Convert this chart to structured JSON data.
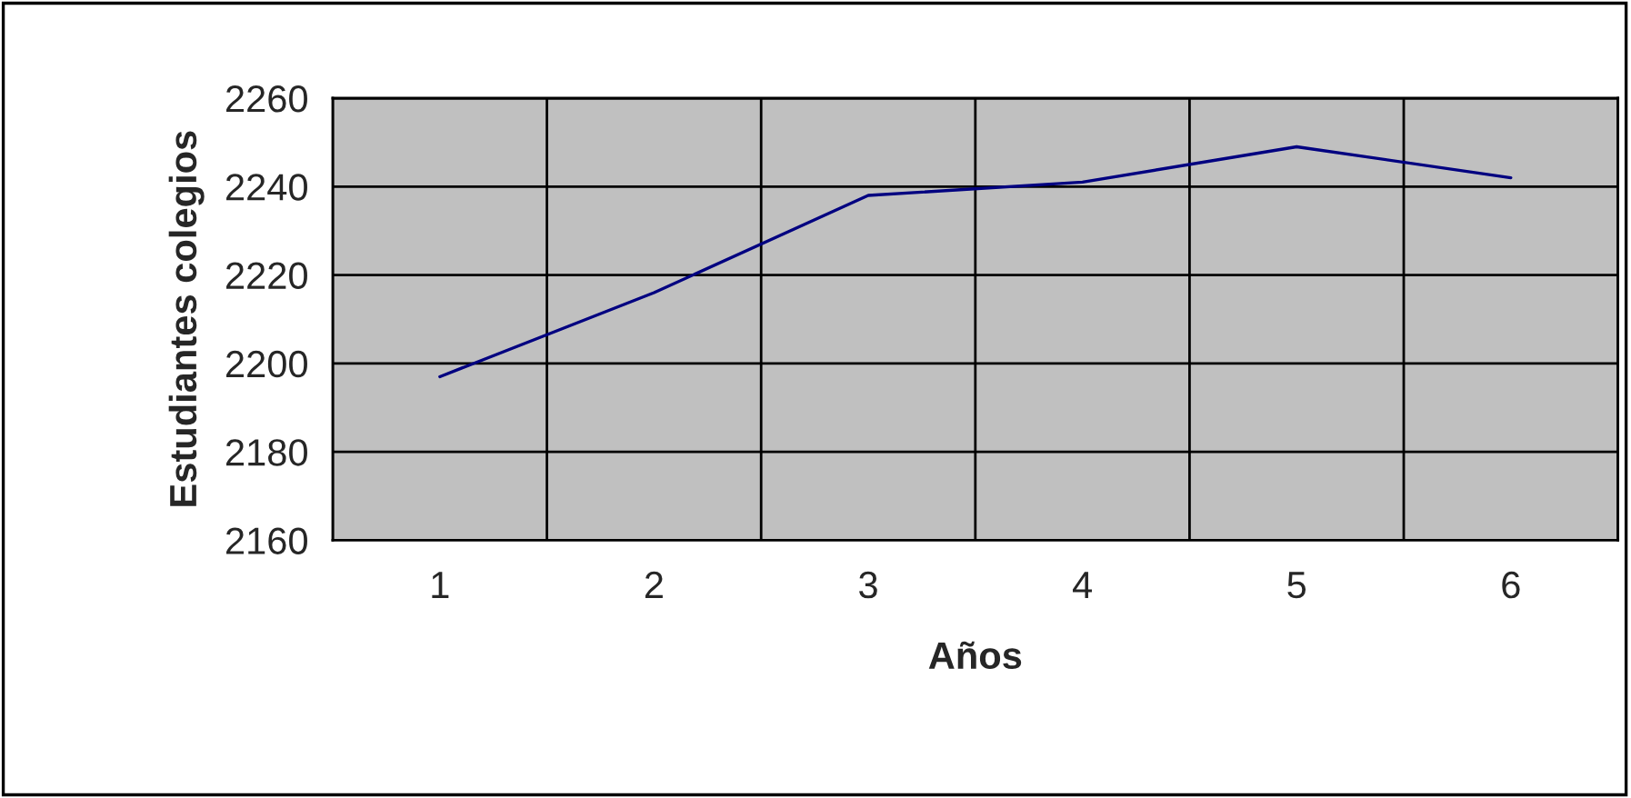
{
  "chart_data": {
    "type": "line",
    "xlabel": "Años",
    "ylabel": "Estudiantes colegios",
    "categories": [
      "1",
      "2",
      "3",
      "4",
      "5",
      "6"
    ],
    "series": [
      {
        "color": "#000080",
        "values": [
          2197,
          2216,
          2238,
          2241,
          2249,
          2242
        ]
      }
    ],
    "ylim": [
      2160,
      2260
    ],
    "yticks": [
      2160,
      2180,
      2200,
      2220,
      2240,
      2260
    ],
    "grid": true,
    "legend": false,
    "marker": "none",
    "line_style": "solid"
  }
}
